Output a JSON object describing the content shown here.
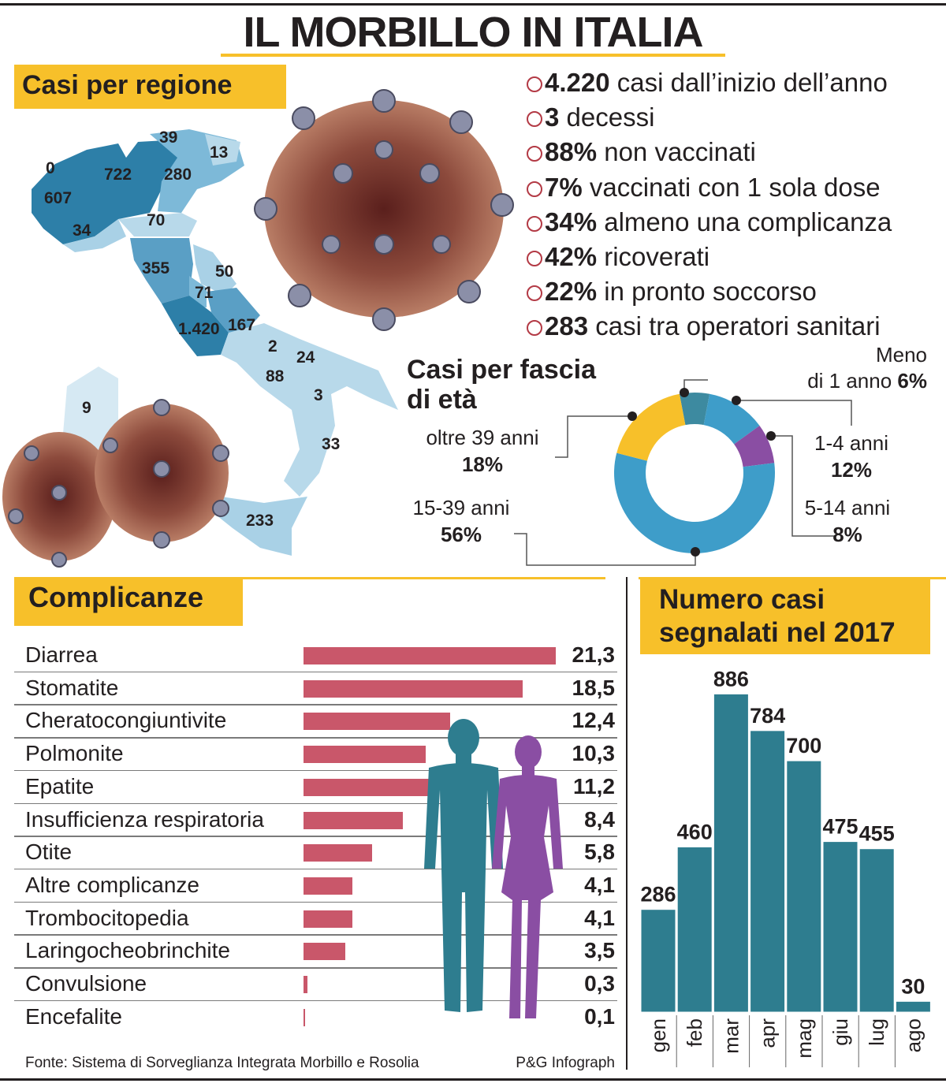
{
  "title": "IL MORBILLO IN ITALIA",
  "regions": {
    "heading": "Casi per regione",
    "labels": [
      "0",
      "607",
      "722",
      "39",
      "13",
      "280",
      "34",
      "70",
      "355",
      "50",
      "71",
      "1.420",
      "167",
      "2",
      "24",
      "88",
      "3",
      "33",
      "9",
      "233"
    ]
  },
  "stats": [
    {
      "bold": "4.220",
      "text": " casi dall’inizio dell’anno"
    },
    {
      "bold": "3",
      "text": " decessi"
    },
    {
      "bold": "88%",
      "text": " non vaccinati"
    },
    {
      "bold": "7%",
      "text": " vaccinati con 1 sola dose"
    },
    {
      "bold": "34%",
      "text": " almeno una complicanza"
    },
    {
      "bold": "42%",
      "text": " ricoverati"
    },
    {
      "bold": "22%",
      "text": " in pronto soccorso"
    },
    {
      "bold": "283",
      "text": " casi tra operatori sanitari"
    }
  ],
  "age": {
    "heading_line1": "Casi per fascia",
    "heading_line2": "di età",
    "segments": [
      {
        "name1": "Meno",
        "name2": "di 1 anno",
        "pct": "6%",
        "value": 6,
        "color": "#3d8aa0"
      },
      {
        "name1": "1-4 anni",
        "name2": "",
        "pct": "12%",
        "value": 12,
        "color": "#3e9dc9"
      },
      {
        "name1": "5-14 anni",
        "name2": "",
        "pct": "8%",
        "value": 8,
        "color": "#8a4ea3"
      },
      {
        "name1": "15-39 anni",
        "name2": "",
        "pct": "56%",
        "value": 56,
        "color": "#3e9dc9"
      },
      {
        "name1": "oltre 39 anni",
        "name2": "",
        "pct": "18%",
        "value": 18,
        "color": "#f7c02a"
      }
    ]
  },
  "chart_data": [
    {
      "type": "bar",
      "title": "Complicanze",
      "categories": [
        "Diarrea",
        "Stomatite",
        "Cheratocongiuntivite",
        "Polmonite",
        "Epatite",
        "Insufficienza respiratoria",
        "Otite",
        "Altre complicanze",
        "Trombocitopedia",
        "Laringocheobrinchite",
        "Convulsione",
        "Encefalite"
      ],
      "values": [
        21.3,
        18.5,
        12.4,
        10.3,
        11.2,
        8.4,
        5.8,
        4.1,
        4.1,
        3.5,
        0.3,
        0.1
      ],
      "value_labels": [
        "21,3",
        "18,5",
        "12,4",
        "10,3",
        "11,2",
        "8,4",
        "5,8",
        "4,1",
        "4,1",
        "3,5",
        "0,3",
        "0,1"
      ],
      "orientation": "horizontal",
      "color": "#c9576a"
    },
    {
      "type": "bar",
      "title_line1": "Numero casi",
      "title_line2": "segnalati nel 2017",
      "categories": [
        "gen",
        "feb",
        "mar",
        "apr",
        "mag",
        "giu",
        "lug",
        "ago"
      ],
      "values": [
        286,
        460,
        886,
        784,
        700,
        475,
        455,
        30
      ],
      "color": "#2e7d8f"
    },
    {
      "type": "pie",
      "title": "Casi per fascia di età",
      "categories": [
        "Meno di 1 anno",
        "1-4 anni",
        "5-14 anni",
        "15-39 anni",
        "oltre 39 anni"
      ],
      "values": [
        6,
        12,
        8,
        56,
        18
      ]
    }
  ],
  "source": "Fonte: Sistema di Sorveglianza Integrata Morbillo e Rosolia",
  "credit": "P&G Infograph",
  "colors": {
    "accent": "#f7c02a",
    "bars": "#c9576a",
    "teal": "#2e7d8f",
    "purple": "#8a4ea3",
    "blue": "#3e9dc9"
  }
}
